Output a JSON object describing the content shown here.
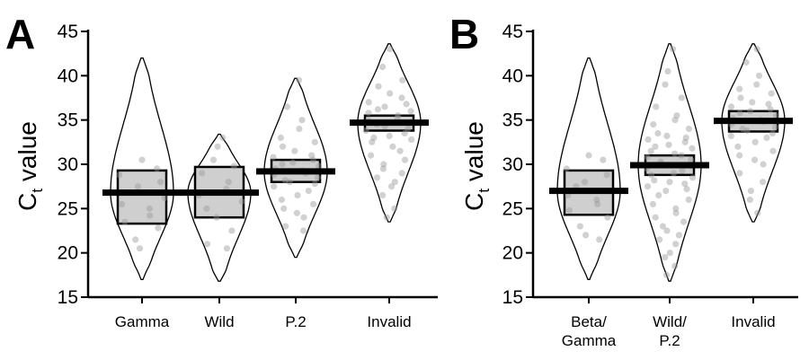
{
  "figure": {
    "panels": [
      "A",
      "B"
    ]
  },
  "chart_data": [
    {
      "panel": "A",
      "type": "violin",
      "ylabel_main": "C",
      "ylabel_sub": "t",
      "ylabel_tail": " value",
      "ylim": [
        15,
        45
      ],
      "yticks": [
        "15",
        "20",
        "25",
        "30",
        "35",
        "40",
        "45"
      ],
      "grid": false,
      "groups": [
        {
          "label_lines": [
            "Gamma"
          ],
          "mean": 26.8,
          "q1": 23.3,
          "q3": 29.3,
          "min": 17.0,
          "max": 42.0,
          "points": [
            30.5,
            29.5,
            28.8,
            28.0,
            27.5,
            26.8,
            26.2,
            25.5,
            25.0,
            24.2,
            23.5,
            22.8,
            21.5,
            20.5
          ]
        },
        {
          "label_lines": [
            "Wild"
          ],
          "mean": 26.8,
          "q1": 24.0,
          "q3": 29.7,
          "min": 16.8,
          "max": 33.4,
          "points": [
            33.0,
            32.0,
            30.5,
            29.8,
            29.0,
            28.0,
            27.2,
            26.5,
            25.8,
            25.0,
            24.0,
            22.5,
            21.0,
            20.5
          ]
        },
        {
          "label_lines": [
            "P.2"
          ],
          "mean": 29.2,
          "q1": 28.0,
          "q3": 30.5,
          "min": 19.5,
          "max": 39.7,
          "points": [
            39.5,
            36.5,
            35.0,
            34.0,
            33.0,
            32.5,
            32.0,
            31.5,
            31.0,
            30.8,
            30.5,
            30.2,
            30.0,
            29.8,
            29.5,
            29.3,
            29.0,
            28.8,
            28.5,
            28.2,
            28.0,
            27.8,
            27.5,
            27.0,
            26.5,
            26.0,
            25.5,
            25.0,
            24.5,
            24.0,
            23.0,
            22.5
          ]
        },
        {
          "label_lines": [
            "Invalid"
          ],
          "mean": 34.7,
          "q1": 33.8,
          "q3": 35.5,
          "min": 23.5,
          "max": 43.6,
          "points": [
            43.0,
            41.0,
            39.5,
            38.8,
            38.0,
            37.5,
            37.0,
            36.8,
            36.5,
            36.2,
            36.0,
            35.8,
            35.5,
            35.2,
            35.0,
            34.8,
            34.5,
            34.3,
            34.0,
            33.8,
            33.5,
            33.2,
            33.0,
            32.8,
            32.5,
            32.0,
            31.5,
            31.0,
            30.5,
            30.0,
            29.5,
            29.0,
            28.5,
            28.0,
            27.5,
            26.5,
            25.0,
            24.0
          ]
        }
      ]
    },
    {
      "panel": "B",
      "type": "violin",
      "ylabel_main": "C",
      "ylabel_sub": "t",
      "ylabel_tail": " value",
      "ylim": [
        15,
        45
      ],
      "yticks": [
        "15",
        "20",
        "25",
        "30",
        "35",
        "40",
        "45"
      ],
      "grid": false,
      "groups": [
        {
          "label_lines": [
            "Beta/",
            "Gamma"
          ],
          "mean": 27.0,
          "q1": 24.3,
          "q3": 29.3,
          "min": 17.0,
          "max": 42.0,
          "points": [
            31.0,
            30.5,
            29.5,
            28.8,
            28.0,
            27.5,
            27.0,
            26.5,
            26.0,
            25.5,
            24.8,
            24.0,
            23.0,
            22.0,
            21.5
          ]
        },
        {
          "label_lines": [
            "Wild/",
            "P.2"
          ],
          "mean": 29.9,
          "q1": 28.8,
          "q3": 31.0,
          "min": 16.8,
          "max": 43.6,
          "points": [
            43.0,
            40.5,
            39.0,
            37.5,
            36.5,
            35.5,
            35.0,
            34.5,
            34.0,
            33.5,
            33.2,
            33.0,
            32.8,
            32.5,
            32.2,
            32.0,
            31.8,
            31.5,
            31.2,
            31.0,
            30.8,
            30.5,
            30.3,
            30.0,
            29.8,
            29.5,
            29.3,
            29.0,
            28.8,
            28.5,
            28.2,
            28.0,
            27.8,
            27.5,
            27.2,
            27.0,
            26.5,
            26.0,
            25.5,
            25.0,
            24.5,
            24.0,
            23.5,
            23.0,
            22.5,
            22.0,
            21.5,
            21.0,
            20.0,
            19.5,
            18.5,
            17.5
          ]
        },
        {
          "label_lines": [
            "Invalid"
          ],
          "mean": 34.9,
          "q1": 33.7,
          "q3": 36.0,
          "min": 23.5,
          "max": 43.6,
          "points": [
            43.0,
            41.5,
            40.0,
            39.0,
            38.5,
            38.0,
            37.5,
            37.0,
            36.8,
            36.5,
            36.2,
            36.0,
            35.8,
            35.5,
            35.2,
            35.0,
            34.8,
            34.5,
            34.2,
            34.0,
            33.8,
            33.5,
            33.2,
            33.0,
            32.5,
            32.0,
            31.5,
            31.0,
            30.5,
            30.0,
            29.0,
            28.0,
            27.0,
            26.0,
            24.5
          ]
        }
      ]
    }
  ]
}
